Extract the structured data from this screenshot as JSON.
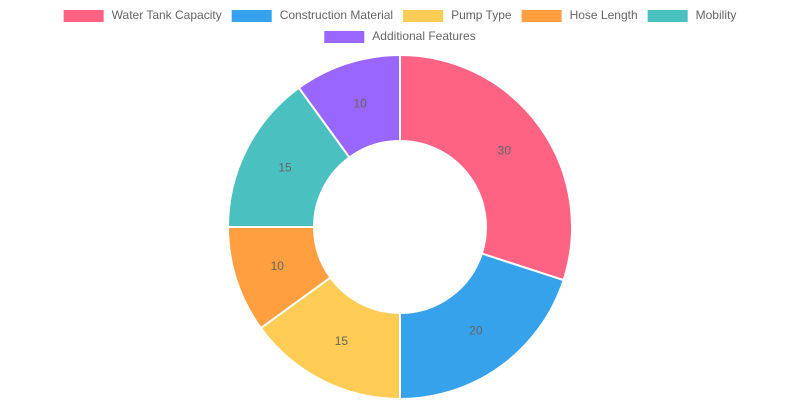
{
  "chart_data": {
    "type": "doughnut",
    "categories": [
      "Water Tank Capacity",
      "Construction Material",
      "Pump Type",
      "Hose Length",
      "Mobility",
      "Additional Features"
    ],
    "values": [
      30,
      20,
      15,
      10,
      15,
      10
    ],
    "colors": [
      "#ff6384",
      "#36a2eb",
      "#ffcd56",
      "#ff9f40",
      "#4bc0c0",
      "#9966ff"
    ],
    "legend": "top"
  }
}
